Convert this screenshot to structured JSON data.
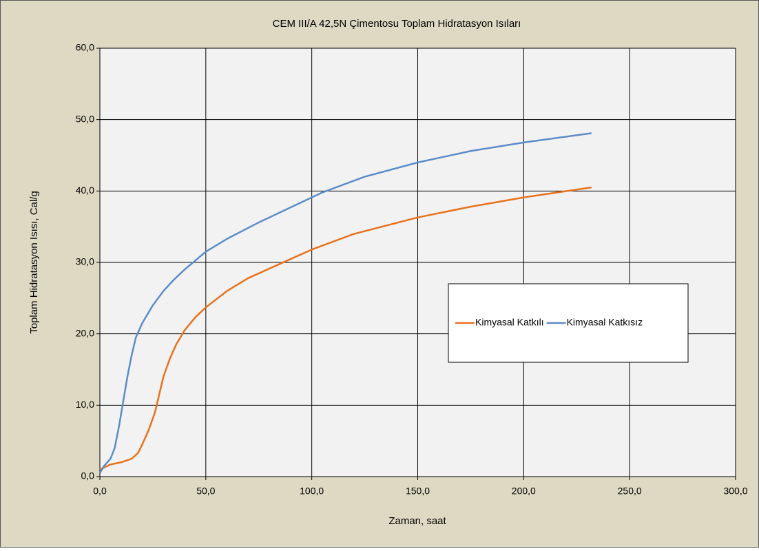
{
  "chart_data": {
    "type": "line",
    "title": "CEM III/A 42,5N Çimentosu Toplam Hidratasyon Isıları",
    "xlabel": "Zaman, saat",
    "ylabel": "Toplam Hidratasyon Isısı, Cal/g",
    "xlim": [
      0,
      300
    ],
    "ylim": [
      0,
      60
    ],
    "xticks": [
      {
        "value": 0,
        "label": "0,0"
      },
      {
        "value": 50,
        "label": "50,0"
      },
      {
        "value": 100,
        "label": "100,0"
      },
      {
        "value": 150,
        "label": "150,0"
      },
      {
        "value": 200,
        "label": "200,0"
      },
      {
        "value": 250,
        "label": "250,0"
      },
      {
        "value": 300,
        "label": "300,0"
      }
    ],
    "yticks": [
      {
        "value": 0,
        "label": "0,0"
      },
      {
        "value": 10,
        "label": "10,0"
      },
      {
        "value": 20,
        "label": "20,0"
      },
      {
        "value": 30,
        "label": "30,0"
      },
      {
        "value": 40,
        "label": "40,0"
      },
      {
        "value": 50,
        "label": "50,0"
      },
      {
        "value": 60,
        "label": "60,0"
      }
    ],
    "grid": true,
    "legend": "right",
    "series": [
      {
        "name": "Kimyasal Katkılı",
        "color": "#e8711c",
        "x": [
          0,
          5,
          10,
          15,
          18,
          20,
          23,
          26,
          28,
          30,
          33,
          36,
          40,
          45,
          50,
          60,
          70,
          85,
          100,
          120,
          150,
          175,
          200,
          232
        ],
        "values": [
          1,
          1.7,
          2,
          2.5,
          3.3,
          4.5,
          6.5,
          9,
          11.5,
          14,
          16.5,
          18.5,
          20.5,
          22.3,
          23.7,
          26,
          27.8,
          29.8,
          31.8,
          34,
          36.3,
          37.8,
          39.1,
          40.5
        ]
      },
      {
        "name": "Kimyasal Katkısız",
        "color": "#5b8cc8",
        "x": [
          0,
          2,
          5,
          7,
          9,
          11,
          13,
          15,
          17,
          20,
          25,
          30,
          35,
          40,
          50,
          60,
          75,
          90,
          105,
          125,
          150,
          175,
          200,
          232
        ],
        "values": [
          0.5,
          1.5,
          2.5,
          4,
          7,
          10.5,
          14,
          17,
          19.5,
          21.5,
          24,
          26,
          27.6,
          29,
          31.5,
          33.3,
          35.6,
          37.7,
          39.8,
          42,
          44,
          45.6,
          46.8,
          48.1
        ]
      }
    ]
  }
}
